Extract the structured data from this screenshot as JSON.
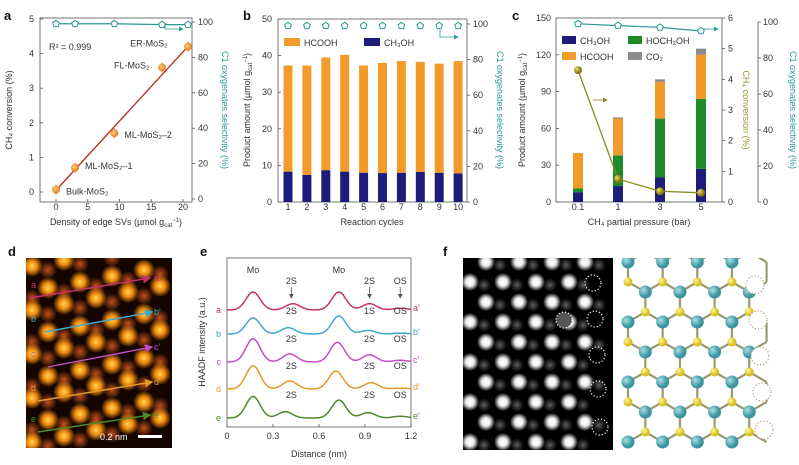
{
  "panels": {
    "a": {
      "letter": "a"
    },
    "b": {
      "letter": "b"
    },
    "c": {
      "letter": "c"
    },
    "d": {
      "letter": "d",
      "scale_bar": "0.2 nm",
      "line_labels": [
        "a",
        "b",
        "c",
        "d",
        "e"
      ],
      "line_end_labels": [
        "a′",
        "b′",
        "c′",
        "d′",
        "e′"
      ]
    },
    "e": {
      "letter": "e"
    },
    "f": {
      "letter": "f"
    }
  },
  "colors": {
    "fit_line": "#b5322a",
    "point": "#f0a040",
    "selectivity": "#2a9a95",
    "hcooh": "#f39a2b",
    "ch3oh": "#1c1c7a",
    "hoch2oh": "#1f8a2a",
    "co2": "#8a8a8a",
    "conversion": "#8a8a1a",
    "profile_a": "#c8306e",
    "profile_b": "#3fa9c9",
    "profile_c": "#c24fc7",
    "profile_d": "#e39a2a",
    "profile_e": "#4c8a2a",
    "mo_atom": "#4fa9b3",
    "s_atom": "#e6d42a"
  },
  "chart_data": [
    {
      "type": "scatter",
      "panel": "a",
      "xlabel": {
        "main": "Density of edge SVs (µmol g",
        "sub": "cat",
        "sup": "−1",
        "close": ")"
      },
      "ylabel": "CH₄ conversion (%)",
      "y2label": "C1 oxygenates selectivity (%)",
      "annotation": "R² = 0.999",
      "xlim": [
        -2,
        22
      ],
      "ylim": [
        0,
        5
      ],
      "y2lim": [
        0,
        100
      ],
      "xticks": [
        "0",
        "5",
        "10",
        "15",
        "20"
      ],
      "yticks": [
        "0",
        "1",
        "2",
        "3",
        "4",
        "5"
      ],
      "y2ticks": [
        "0",
        "20",
        "40",
        "60",
        "80",
        "100"
      ],
      "points": [
        {
          "label": "Bulk-MoS₂",
          "x": 0,
          "conversion": 0.07,
          "selectivity": 99
        },
        {
          "label": "ML-MoS₂–1",
          "x": 3,
          "conversion": 0.7,
          "selectivity": 99
        },
        {
          "label": "ML-MoS₂–2",
          "x": 9.2,
          "conversion": 1.7,
          "selectivity": 99
        },
        {
          "label": "FL-MoS₂",
          "x": 16.7,
          "conversion": 3.6,
          "selectivity": 98.5
        },
        {
          "label": "ER-MoS₂",
          "x": 20.8,
          "conversion": 4.2,
          "selectivity": 98.5
        }
      ],
      "fit": {
        "x": [
          0,
          21
        ],
        "y": [
          0.05,
          4.25
        ]
      }
    },
    {
      "type": "bar",
      "panel": "b",
      "xlabel": "Reaction cycles",
      "ylabel": {
        "main": "Product amount (µmol g",
        "sub": "cat",
        "sup": "−1",
        "close": ")"
      },
      "y2label": "C1 oxygenates selectivity (%)",
      "ylim": [
        0,
        50
      ],
      "y2lim": [
        0,
        100
      ],
      "yticks": [
        "0",
        "10",
        "20",
        "30",
        "40",
        "50"
      ],
      "y2ticks": [
        "0",
        "20",
        "40",
        "60",
        "80",
        "100"
      ],
      "categories": [
        "1",
        "2",
        "3",
        "4",
        "5",
        "6",
        "7",
        "8",
        "9",
        "10"
      ],
      "series": [
        {
          "name": "CH₃OH",
          "values": [
            8.3,
            7.4,
            8.7,
            8.3,
            8.0,
            7.9,
            8.0,
            8.2,
            8.0,
            7.8
          ]
        },
        {
          "name": "HCOOH",
          "values": [
            29.0,
            29.9,
            30.8,
            31.9,
            29.3,
            30.1,
            30.5,
            30.1,
            29.8,
            30.7
          ]
        }
      ],
      "selectivity": [
        99,
        99,
        99,
        99,
        99,
        99,
        99,
        99,
        99,
        99
      ]
    },
    {
      "type": "bar",
      "panel": "c",
      "xlabel": "CH₄ partial pressure (bar)",
      "ylabel": {
        "main": "Product amount (µmol g",
        "sub": "cat",
        "sup": "−1",
        "close": ")"
      },
      "y2label": "CH₄ conversion (%)",
      "y3label": "C1 oxygenates selectivity (%)",
      "ylim": [
        0,
        150
      ],
      "y2lim": [
        0,
        6
      ],
      "y3lim": [
        0,
        100
      ],
      "yticks": [
        "0",
        "30",
        "60",
        "90",
        "120",
        "150"
      ],
      "y2ticks": [
        "0",
        "1",
        "2",
        "3",
        "4",
        "5",
        "6"
      ],
      "y3ticks": [
        "0",
        "20",
        "40",
        "60",
        "80",
        "100"
      ],
      "categories": [
        "0.1",
        "1",
        "3",
        "5"
      ],
      "series": [
        {
          "name": "CH₃OH",
          "values": [
            8,
            13,
            20,
            27
          ]
        },
        {
          "name": "HOCH₂OH",
          "values": [
            3,
            25,
            48,
            57
          ]
        },
        {
          "name": "HCOOH",
          "values": [
            29,
            30,
            30,
            36
          ]
        },
        {
          "name": "CO₂",
          "values": [
            0,
            1,
            2,
            5
          ]
        }
      ],
      "conversion": [
        4.3,
        0.75,
        0.35,
        0.3
      ],
      "selectivity": [
        99,
        98,
        97,
        95
      ]
    },
    {
      "type": "line",
      "panel": "e",
      "xlabel": "Distance (nm)",
      "ylabel": "HAADF intensity (a.u.)",
      "xlim": [
        0,
        1.2
      ],
      "xticks": [
        "0",
        "0.3",
        "0.6",
        "0.9",
        "1.2"
      ],
      "top_labels": [
        {
          "text": "Mo",
          "x": 0.17
        },
        {
          "text": "Mo",
          "x": 0.73
        }
      ],
      "series": [
        {
          "name": "a",
          "end": "a′",
          "labels": [
            "2S",
            "2S",
            "OS"
          ],
          "peaks": [
            [
              0.17,
              1.0
            ],
            [
              0.43,
              0.35
            ],
            [
              0.73,
              1.0
            ],
            [
              0.93,
              0.35
            ],
            [
              1.13,
              0.1
            ]
          ]
        },
        {
          "name": "b",
          "end": "b′",
          "labels": [
            "2S",
            "1S",
            "OS"
          ],
          "peaks": [
            [
              0.17,
              0.9
            ],
            [
              0.4,
              0.35
            ],
            [
              0.73,
              1.0
            ],
            [
              0.92,
              0.2
            ],
            [
              1.13,
              0.05
            ]
          ]
        },
        {
          "name": "c",
          "end": "c′",
          "labels": [
            "2S",
            "2S",
            "OS"
          ],
          "peaks": [
            [
              0.17,
              1.3
            ],
            [
              0.41,
              0.45
            ],
            [
              0.72,
              1.1
            ],
            [
              0.93,
              0.4
            ],
            [
              1.13,
              0.1
            ]
          ]
        },
        {
          "name": "d",
          "end": "d′",
          "labels": [
            "2S",
            "2S",
            "OS"
          ],
          "peaks": [
            [
              0.17,
              1.3
            ],
            [
              0.41,
              0.45
            ],
            [
              0.71,
              1.0
            ],
            [
              0.94,
              0.35
            ],
            [
              1.13,
              0.05
            ]
          ]
        },
        {
          "name": "e",
          "end": "e′",
          "labels": [
            "2S",
            "2S",
            "OS"
          ],
          "peaks": [
            [
              0.17,
              1.2
            ],
            [
              0.38,
              0.35
            ],
            [
              0.73,
              1.0
            ],
            [
              0.92,
              0.3
            ],
            [
              1.13,
              0.1
            ]
          ]
        }
      ]
    }
  ]
}
